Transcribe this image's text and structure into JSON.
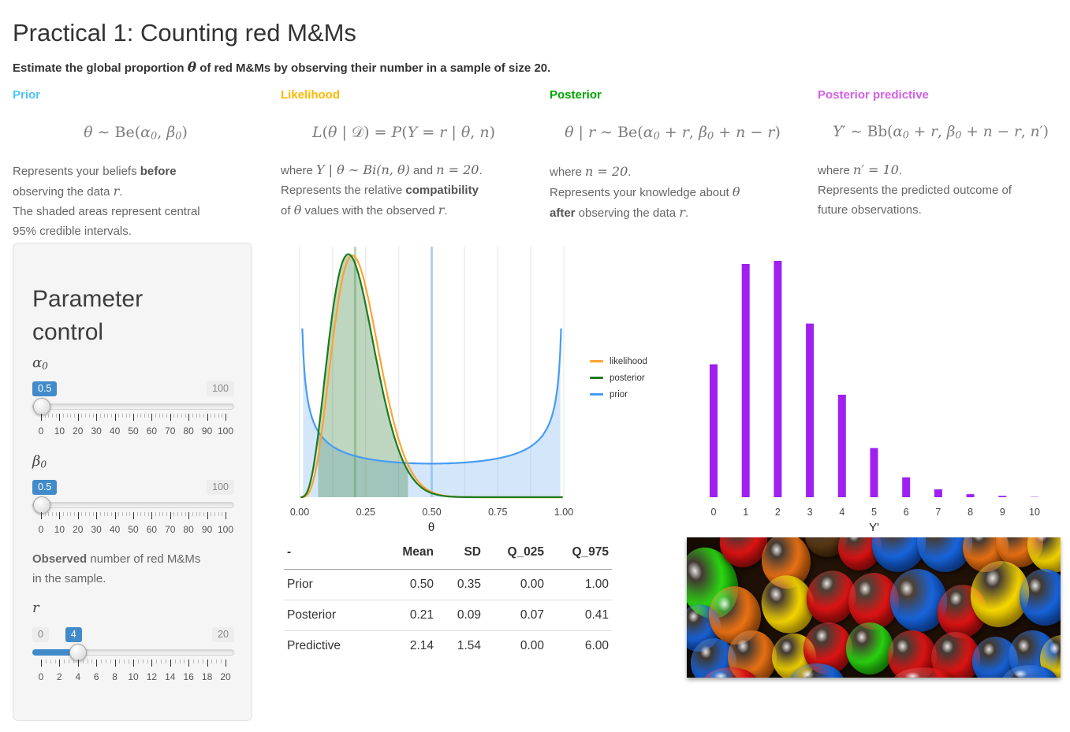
{
  "page": {
    "title": "Practical 1: Counting red M&Ms",
    "subtitle": [
      {
        "t": "Estimate the global proportion ",
        "b": 1
      },
      {
        "t": "θ",
        "m": 1,
        "b": 1
      },
      {
        "t": " of red M&Ms by observing their number in a sample of size 20.",
        "b": 1
      }
    ]
  },
  "columns": [
    {
      "id": "prior",
      "label": "Prior",
      "color": "#4FC3F7",
      "formula": [
        {
          "t": "θ",
          "m": 1
        },
        {
          "t": " ∼ Be("
        },
        {
          "t": "α",
          "m": 1
        },
        {
          "t": "0",
          "sub": 1
        },
        {
          "t": ", "
        },
        {
          "t": "β",
          "m": 1
        },
        {
          "t": "0",
          "sub": 1
        },
        {
          "t": ")"
        }
      ],
      "desc": [
        [
          {
            "t": "Represents your beliefs "
          },
          {
            "t": "before",
            "b": 1
          }
        ],
        [
          {
            "t": "observing the data "
          },
          {
            "t": "r",
            "m": 1
          },
          {
            "t": "."
          }
        ],
        [
          {
            "t": "The shaded areas represent central"
          }
        ],
        [
          {
            "t": "95% credible intervals."
          }
        ]
      ]
    },
    {
      "id": "likelihood",
      "label": "Likelihood",
      "color": "#FFB800",
      "formula": [
        {
          "t": "L",
          "m": 1
        },
        {
          "t": "("
        },
        {
          "t": "θ",
          "m": 1
        },
        {
          "t": " | 𝒟) = "
        },
        {
          "t": "P",
          "m": 1
        },
        {
          "t": "("
        },
        {
          "t": "Y",
          "m": 1
        },
        {
          "t": " = "
        },
        {
          "t": "r",
          "m": 1
        },
        {
          "t": " | "
        },
        {
          "t": "θ",
          "m": 1
        },
        {
          "t": ", "
        },
        {
          "t": "n",
          "m": 1
        },
        {
          "t": ")"
        }
      ],
      "desc": [
        [
          {
            "t": "where "
          },
          {
            "t": "Y | θ ∼ Bi(n, θ)",
            "m": 1
          },
          {
            "t": " and "
          },
          {
            "t": "n = 20",
            "m": 1
          },
          {
            "t": "."
          }
        ],
        [
          {
            "t": "Represents the relative "
          },
          {
            "t": "compatibility",
            "b": 1
          }
        ],
        [
          {
            "t": "of "
          },
          {
            "t": "θ",
            "m": 1
          },
          {
            "t": " values with the observed "
          },
          {
            "t": "r",
            "m": 1
          },
          {
            "t": "."
          }
        ]
      ]
    },
    {
      "id": "posterior",
      "label": "Posterior",
      "color": "#00A400",
      "formula": [
        {
          "t": "θ",
          "m": 1
        },
        {
          "t": " | "
        },
        {
          "t": "r",
          "m": 1
        },
        {
          "t": " ∼ Be("
        },
        {
          "t": "α",
          "m": 1
        },
        {
          "t": "0",
          "sub": 1
        },
        {
          "t": " + "
        },
        {
          "t": "r",
          "m": 1
        },
        {
          "t": ", "
        },
        {
          "t": "β",
          "m": 1
        },
        {
          "t": "0",
          "sub": 1
        },
        {
          "t": " + "
        },
        {
          "t": "n",
          "m": 1
        },
        {
          "t": " − "
        },
        {
          "t": "r",
          "m": 1
        },
        {
          "t": ")"
        }
      ],
      "desc": [
        [
          {
            "t": "where "
          },
          {
            "t": "n = 20",
            "m": 1
          },
          {
            "t": "."
          }
        ],
        [
          {
            "t": "Represents your knowledge about "
          },
          {
            "t": "θ",
            "m": 1
          }
        ],
        [
          {
            "t": "after",
            "b": 1
          },
          {
            "t": " observing the data "
          },
          {
            "t": "r",
            "m": 1
          },
          {
            "t": "."
          }
        ]
      ]
    },
    {
      "id": "predictive",
      "label": "Posterior predictive",
      "color": "#D45FE8",
      "formula": [
        {
          "t": "Y",
          "m": 1
        },
        {
          "t": "′ ∼ Bb("
        },
        {
          "t": "α",
          "m": 1
        },
        {
          "t": "0",
          "sub": 1
        },
        {
          "t": " + "
        },
        {
          "t": "r",
          "m": 1
        },
        {
          "t": ", "
        },
        {
          "t": "β",
          "m": 1
        },
        {
          "t": "0",
          "sub": 1
        },
        {
          "t": " + "
        },
        {
          "t": "n",
          "m": 1
        },
        {
          "t": " − "
        },
        {
          "t": "r",
          "m": 1
        },
        {
          "t": ", "
        },
        {
          "t": "n",
          "m": 1
        },
        {
          "t": "′)"
        }
      ],
      "desc": [
        [
          {
            "t": "where "
          },
          {
            "t": "n′ = 10",
            "m": 1
          },
          {
            "t": "."
          }
        ],
        [
          {
            "t": "Represents the predicted outcome of"
          }
        ],
        [
          {
            "t": "future observations."
          }
        ]
      ]
    }
  ],
  "panel": {
    "title": "Parameter control",
    "observed_note": [
      [
        {
          "t": "Observed",
          "b": 1
        },
        {
          "t": " number of red M&Ms"
        }
      ],
      [
        {
          "t": "in the sample."
        }
      ]
    ],
    "sliders": [
      {
        "id": "alpha0",
        "label": [
          {
            "t": "α",
            "m": 1
          },
          {
            "t": "0",
            "sub": 1
          }
        ],
        "value": "0.5",
        "min_label": null,
        "max_label": "100",
        "frac": 0.005,
        "fill": false,
        "tick_count": 51,
        "major_every": 5,
        "tick_labels": [
          "0",
          "10",
          "20",
          "30",
          "40",
          "50",
          "60",
          "70",
          "80",
          "90",
          "100"
        ]
      },
      {
        "id": "beta0",
        "label": [
          {
            "t": "β",
            "m": 1
          },
          {
            "t": "0",
            "sub": 1
          }
        ],
        "value": "0.5",
        "min_label": null,
        "max_label": "100",
        "frac": 0.005,
        "fill": false,
        "tick_count": 51,
        "major_every": 5,
        "tick_labels": [
          "0",
          "10",
          "20",
          "30",
          "40",
          "50",
          "60",
          "70",
          "80",
          "90",
          "100"
        ]
      },
      {
        "id": "r",
        "label": [
          {
            "t": "r",
            "m": 1
          }
        ],
        "value": "4",
        "min_label": "0",
        "max_label": "20",
        "frac": 0.2,
        "fill": true,
        "tick_count": 41,
        "major_every": 4,
        "tick_labels": [
          "0",
          "2",
          "4",
          "6",
          "8",
          "10",
          "12",
          "14",
          "16",
          "18",
          "20"
        ]
      }
    ]
  },
  "chart_data": [
    {
      "id": "density",
      "type": "line",
      "title": "",
      "xlabel": "θ",
      "ylabel": "",
      "xlim": [
        0,
        1
      ],
      "ymax": 4.75,
      "grid_step": 0.125,
      "grid": true,
      "legend_position": "right",
      "x_ticks": [
        {
          "v": 0,
          "label": "0.00"
        },
        {
          "v": 0.25,
          "label": "0.25"
        },
        {
          "v": 0.5,
          "label": "0.50"
        },
        {
          "v": 0.75,
          "label": "0.75"
        },
        {
          "v": 1,
          "label": "1.00"
        }
      ],
      "legend": [
        {
          "name": "likelihood",
          "color": "#FFA330"
        },
        {
          "name": "posterior",
          "color": "#1E7B1E"
        },
        {
          "name": "prior",
          "color": "#459CF5"
        }
      ],
      "series": [
        {
          "name": "prior",
          "dist": "beta",
          "params": [
            0.5,
            0.5
          ],
          "clip": [
            0.01,
            0.99
          ],
          "color": "#459CF5",
          "ci": [
            0.013,
            0.987
          ],
          "ci_fill": "rgba(125,180,240,0.33)",
          "mean": 0.5,
          "mean_line_color": "rgba(130,185,240,0.6)"
        },
        {
          "name": "likelihood",
          "dist": "beta",
          "params": [
            5,
            17
          ],
          "clip": [
            0.004,
            0.996
          ],
          "color": "#FFA330"
        },
        {
          "name": "posterior",
          "dist": "beta",
          "params": [
            4.5,
            16.5
          ],
          "clip": [
            0.004,
            0.996
          ],
          "color": "#1E7B1E",
          "ci": [
            0.07,
            0.41
          ],
          "ci_fill": "rgba(58,130,62,0.33)",
          "mean": 0.21,
          "mean_line_color": "rgba(95,160,95,0.45)"
        }
      ]
    },
    {
      "id": "predictive",
      "type": "bar",
      "title": "",
      "xlabel": "Y'",
      "ylabel": "",
      "categories": [
        "0",
        "1",
        "2",
        "3",
        "4",
        "5",
        "6",
        "7",
        "8",
        "9",
        "10"
      ],
      "values": [
        0.127,
        0.223,
        0.226,
        0.166,
        0.098,
        0.047,
        0.019,
        0.0075,
        0.0029,
        0.0013,
        0.0003
      ],
      "bar_color": "#A020F0"
    }
  ],
  "table": {
    "headers": [
      "-",
      "Mean",
      "SD",
      "Q_025",
      "Q_975"
    ],
    "rows": [
      [
        "Prior",
        "0.50",
        "0.35",
        "0.00",
        "1.00"
      ],
      [
        "Posterior",
        "0.21",
        "0.09",
        "0.07",
        "0.41"
      ],
      [
        "Predictive",
        "2.14",
        "1.54",
        "0.00",
        "6.00"
      ]
    ]
  },
  "photo": {
    "description": "pile of colorful candy-coated chocolates",
    "palette": {
      "red": [
        "#E31414",
        "#8F0A0A"
      ],
      "orange": [
        "#F07414",
        "#9E4A08"
      ],
      "blue": [
        "#1866E0",
        "#0B3D96"
      ],
      "yellow": [
        "#F8D800",
        "#C29A00"
      ],
      "green": [
        "#2BD911",
        "#138A06"
      ],
      "brown": [
        "#5E3A14",
        "#301A06"
      ]
    }
  }
}
